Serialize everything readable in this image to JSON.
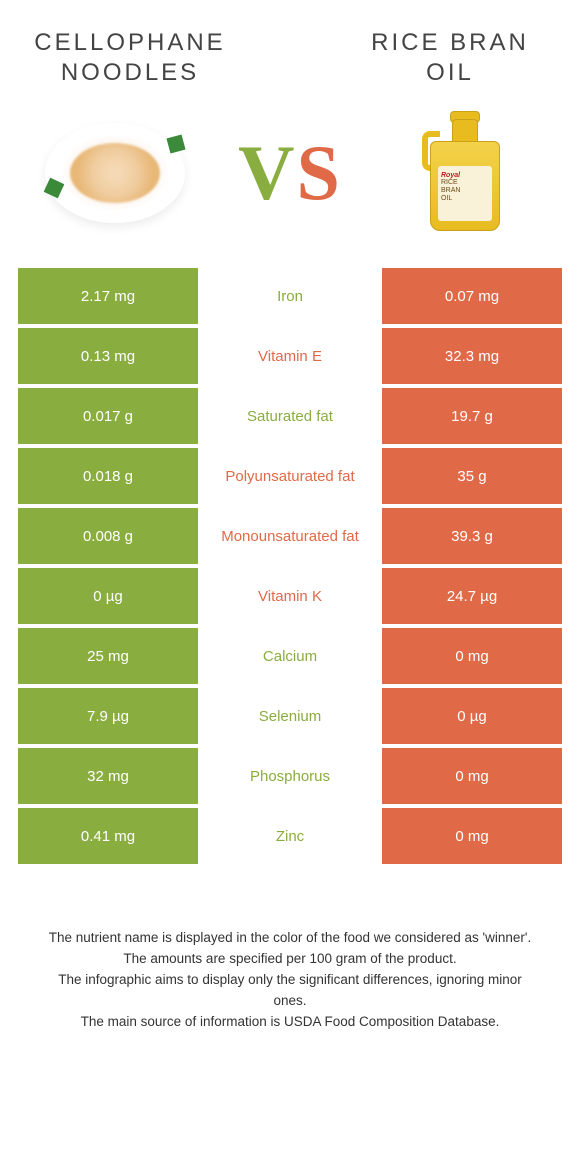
{
  "colors": {
    "left": "#8aad3f",
    "right": "#e06a47",
    "left_text": "#8aad3f",
    "right_text": "#e06a47"
  },
  "header": {
    "left_title": "CELLOPHANE NOODLES",
    "right_title": "RICE BRAN OIL"
  },
  "vs": {
    "v": "V",
    "s": "S"
  },
  "bottle_label": {
    "brand": "Royal",
    "line1": "RICE",
    "line2": "BRAN",
    "line3": "OIL"
  },
  "rows": [
    {
      "left": "2.17 mg",
      "name": "Iron",
      "right": "0.07 mg",
      "winner": "left"
    },
    {
      "left": "0.13 mg",
      "name": "Vitamin E",
      "right": "32.3 mg",
      "winner": "right"
    },
    {
      "left": "0.017 g",
      "name": "Saturated fat",
      "right": "19.7 g",
      "winner": "left"
    },
    {
      "left": "0.018 g",
      "name": "Polyunsaturated fat",
      "right": "35 g",
      "winner": "right"
    },
    {
      "left": "0.008 g",
      "name": "Monounsaturated fat",
      "right": "39.3 g",
      "winner": "right"
    },
    {
      "left": "0 µg",
      "name": "Vitamin K",
      "right": "24.7 µg",
      "winner": "right"
    },
    {
      "left": "25 mg",
      "name": "Calcium",
      "right": "0 mg",
      "winner": "left"
    },
    {
      "left": "7.9 µg",
      "name": "Selenium",
      "right": "0 µg",
      "winner": "left"
    },
    {
      "left": "32 mg",
      "name": "Phosphorus",
      "right": "0 mg",
      "winner": "left"
    },
    {
      "left": "0.41 mg",
      "name": "Zinc",
      "right": "0 mg",
      "winner": "left"
    }
  ],
  "footer": {
    "line1": "The nutrient name is displayed in the color of the food we considered as 'winner'.",
    "line2": "The amounts are specified per 100 gram of the product.",
    "line3": "The infographic aims to display only the significant differences, ignoring minor ones.",
    "line4": "The main source of information is USDA Food Composition Database."
  }
}
